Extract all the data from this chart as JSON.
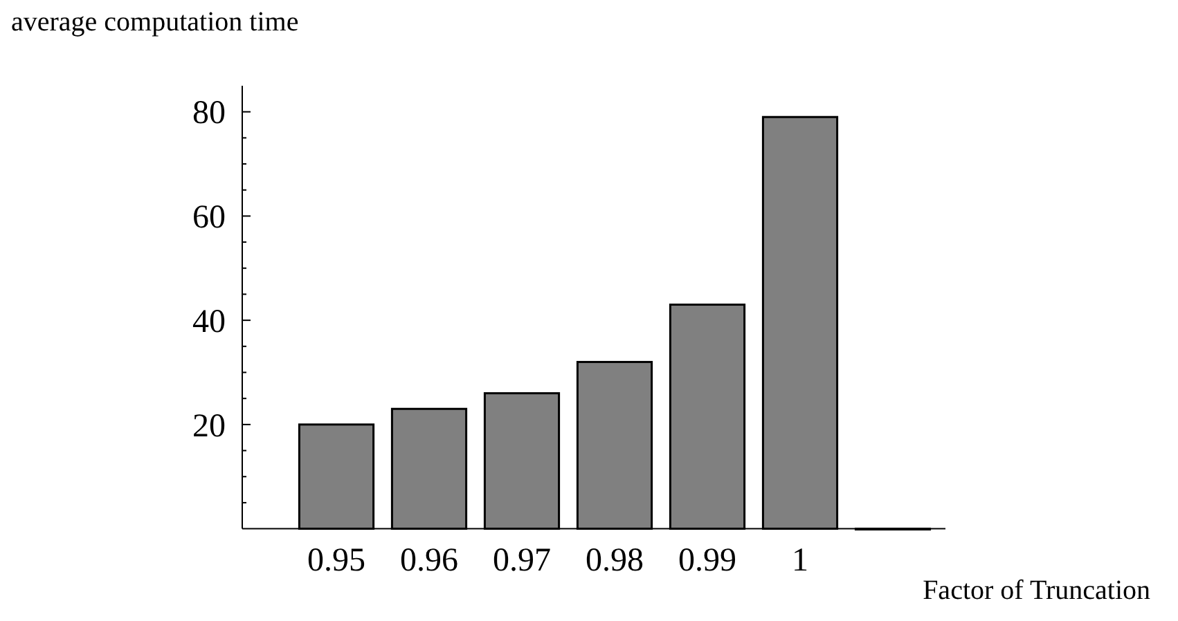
{
  "chart_data": {
    "type": "bar",
    "ylabel": "average computation time",
    "xlabel": "Factor of Truncation",
    "categories": [
      "0.95",
      "0.96",
      "0.97",
      "0.98",
      "0.99",
      "1",
      null
    ],
    "values": [
      20,
      23,
      26,
      32,
      43,
      79,
      0
    ],
    "color": "#808080",
    "ylim": [
      0,
      85
    ],
    "yticks": [
      {
        "value": 5,
        "label": null
      },
      {
        "value": 10,
        "label": null
      },
      {
        "value": 15,
        "label": null
      },
      20,
      {
        "value": 25,
        "label": null
      },
      {
        "value": 30,
        "label": null
      },
      {
        "value": 35,
        "label": null
      },
      40,
      {
        "value": 45,
        "label": null
      },
      {
        "value": 50,
        "label": null
      },
      {
        "value": 55,
        "label": null
      },
      60,
      {
        "value": 65,
        "label": null
      },
      {
        "value": 70,
        "label": null
      },
      {
        "value": 75,
        "label": null
      },
      80
    ],
    "grid": false
  }
}
